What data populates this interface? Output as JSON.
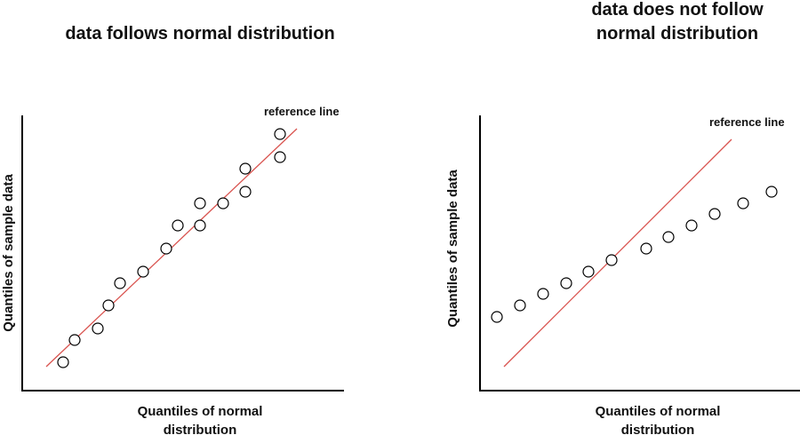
{
  "left_panel": {
    "title": "data follows normal distribution",
    "y_label": "Quantiles of sample data",
    "x_label": [
      "Quantiles of normal",
      "distribution"
    ],
    "annotation": "reference line"
  },
  "right_panel": {
    "title": [
      "data does not follow",
      "normal distribution"
    ],
    "y_label": "Quantiles of sample data",
    "x_label": [
      "Quantiles of normal",
      "distribution"
    ],
    "annotation": "reference line"
  }
}
